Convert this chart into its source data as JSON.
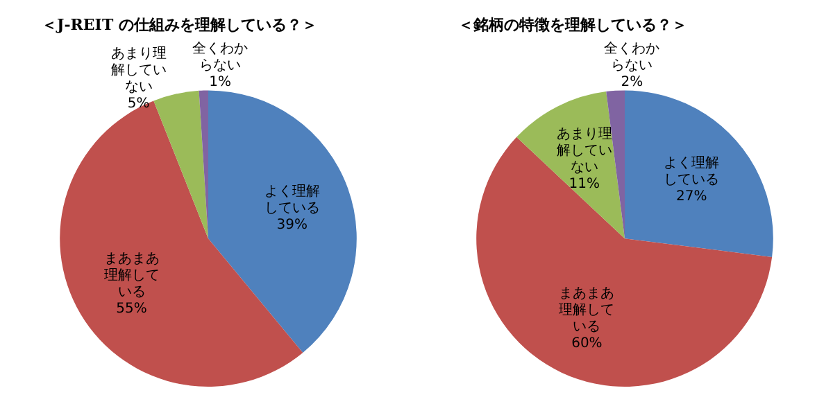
{
  "chart_data": [
    {
      "type": "pie",
      "title": "＜J-REIT の仕組みを理解している？＞",
      "categories": [
        "よく理解している",
        "まあまあ理解している",
        "あまり理解していない",
        "全くわからない"
      ],
      "values": [
        39,
        55,
        5,
        1
      ],
      "value_labels": [
        "39%",
        "55%",
        "5%",
        "1%"
      ],
      "colors": [
        "#4f81bd",
        "#c0504d",
        "#9bbb59",
        "#8064a2"
      ],
      "legend": false
    },
    {
      "type": "pie",
      "title": "＜銘柄の特徴を理解している？＞",
      "categories": [
        "よく理解している",
        "まあまあ理解している",
        "あまり理解していない",
        "全くわからない"
      ],
      "values": [
        27,
        60,
        11,
        2
      ],
      "value_labels": [
        "27%",
        "60%",
        "11%",
        "2%"
      ],
      "colors": [
        "#4f81bd",
        "#c0504d",
        "#9bbb59",
        "#8064a2"
      ],
      "legend": false
    }
  ]
}
